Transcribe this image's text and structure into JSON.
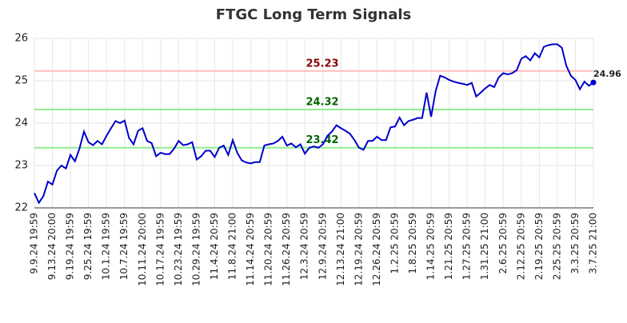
{
  "chart_data": {
    "type": "line",
    "title": "FTGC Long Term Signals",
    "categories": [
      "9.9.24 19:59",
      null,
      null,
      null,
      "9.13.24 20:00",
      null,
      null,
      null,
      "9.19.24 19:59",
      null,
      null,
      null,
      "9.25.24 19:59",
      null,
      null,
      null,
      "10.1.24 19:59",
      null,
      null,
      null,
      "10.7.24 19:59",
      null,
      null,
      null,
      "10.11.24 20:00",
      null,
      null,
      null,
      "10.17.24 19:59",
      null,
      null,
      null,
      "10.23.24 19:59",
      null,
      null,
      null,
      "10.29.24 19:59",
      null,
      null,
      null,
      "11.4.24 20:59",
      null,
      null,
      null,
      "11.8.24 21:00",
      null,
      null,
      null,
      "11.14.24 20:59",
      null,
      null,
      null,
      "11.20.24 20:59",
      null,
      null,
      null,
      "11.26.24 20:59",
      null,
      null,
      null,
      "12.3.24 20:59",
      null,
      null,
      null,
      "12.9.24 20:59",
      null,
      null,
      null,
      "12.13.24 21:00",
      null,
      null,
      null,
      "12.19.24 20:59",
      null,
      null,
      null,
      "12.26.24 20:59",
      null,
      null,
      null,
      "1.2.25 20:59",
      null,
      null,
      null,
      "1.8.25 20:59",
      null,
      null,
      null,
      "1.14.25 20:59",
      null,
      null,
      null,
      "1.21.25 20:59",
      null,
      null,
      null,
      "1.27.25 20:59",
      null,
      null,
      null,
      "1.31.25 21:00",
      null,
      null,
      null,
      "2.6.25 20:59",
      null,
      null,
      null,
      "2.12.25 20:59",
      null,
      null,
      null,
      "2.19.25 20:59",
      null,
      null,
      null,
      "2.25.25 20:59",
      null,
      null,
      null,
      "3.3.25 20:59",
      null,
      null,
      null,
      "3.7.25 21:00"
    ],
    "values": [
      22.35,
      22.12,
      22.28,
      22.62,
      22.55,
      22.88,
      23.0,
      22.93,
      23.25,
      23.1,
      23.4,
      23.8,
      23.55,
      23.48,
      23.58,
      23.5,
      23.7,
      23.88,
      24.05,
      24.0,
      24.06,
      23.65,
      23.5,
      23.82,
      23.88,
      23.58,
      23.53,
      23.22,
      23.3,
      23.27,
      23.27,
      23.4,
      23.58,
      23.48,
      23.5,
      23.55,
      23.14,
      23.22,
      23.35,
      23.35,
      23.2,
      23.42,
      23.47,
      23.25,
      23.6,
      23.3,
      23.12,
      23.07,
      23.05,
      23.08,
      23.08,
      23.47,
      23.5,
      23.52,
      23.58,
      23.68,
      23.47,
      23.52,
      23.43,
      23.5,
      23.28,
      23.42,
      23.45,
      23.42,
      23.5,
      23.7,
      23.8,
      23.95,
      23.88,
      23.82,
      23.75,
      23.6,
      23.42,
      23.37,
      23.58,
      23.58,
      23.68,
      23.6,
      23.6,
      23.9,
      23.92,
      24.13,
      23.95,
      24.05,
      24.08,
      24.12,
      24.12,
      24.72,
      24.15,
      24.75,
      25.12,
      25.08,
      25.02,
      24.98,
      24.95,
      24.93,
      24.9,
      24.95,
      24.63,
      24.72,
      24.82,
      24.9,
      24.85,
      25.08,
      25.18,
      25.15,
      25.18,
      25.25,
      25.52,
      25.58,
      25.48,
      25.65,
      25.55,
      25.8,
      25.84,
      25.86,
      25.86,
      25.78,
      25.35,
      25.12,
      25.02,
      24.8,
      24.98,
      24.88,
      24.96
    ],
    "color": "#0000cc",
    "hlines": [
      {
        "value": 25.23,
        "line_color": "#ffbbbb",
        "label_color": "#8b0000"
      },
      {
        "value": 24.32,
        "line_color": "#90ee90",
        "label_color": "#006400"
      },
      {
        "value": 23.42,
        "line_color": "#90ee90",
        "label_color": "#006400"
      }
    ],
    "ylim": [
      22,
      26
    ],
    "yticks": [
      22,
      23,
      24,
      25,
      26
    ],
    "grid": true
  }
}
